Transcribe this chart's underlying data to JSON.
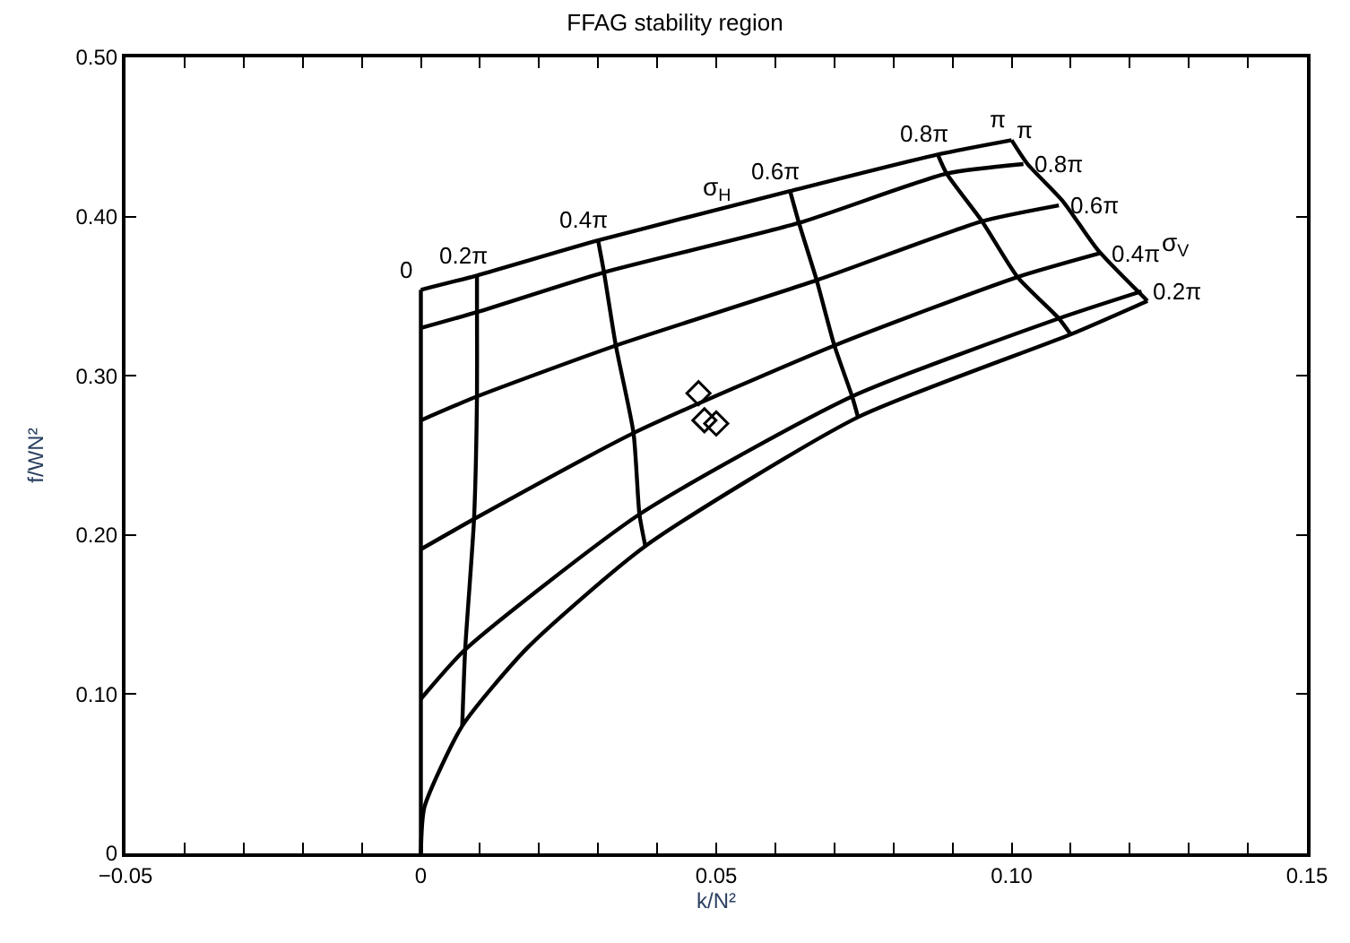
{
  "chart_data": {
    "type": "line",
    "title": "FFAG stability region",
    "xlabel": "k/N²",
    "ylabel": "f/WN²",
    "xlim": [
      -0.05,
      0.15
    ],
    "ylim": [
      0,
      0.5
    ],
    "xticks": [
      {
        "value": -0.05,
        "label": "−0.05"
      },
      {
        "value": -0.04,
        "label": null
      },
      {
        "value": -0.03,
        "label": null
      },
      {
        "value": -0.02,
        "label": null
      },
      {
        "value": -0.01,
        "label": null
      },
      0,
      {
        "value": 0.01,
        "label": null
      },
      {
        "value": 0.02,
        "label": null
      },
      {
        "value": 0.03,
        "label": null
      },
      {
        "value": 0.04,
        "label": null
      },
      0.05,
      {
        "value": 0.06,
        "label": null
      },
      {
        "value": 0.07,
        "label": null
      },
      {
        "value": 0.08,
        "label": null
      },
      {
        "value": 0.09,
        "label": null
      },
      {
        "value": 0.1,
        "label": "0.10"
      },
      {
        "value": 0.11,
        "label": null
      },
      {
        "value": 0.12,
        "label": null
      },
      {
        "value": 0.13,
        "label": null
      },
      {
        "value": 0.14,
        "label": null
      },
      0.15
    ],
    "yticks": [
      0,
      {
        "value": 0.1,
        "label": "0.10"
      },
      {
        "value": 0.2,
        "label": "0.20"
      },
      {
        "value": 0.3,
        "label": "0.30"
      },
      {
        "value": 0.4,
        "label": "0.40"
      },
      {
        "value": 0.5,
        "label": "0.50"
      }
    ],
    "legend": false,
    "marker": "none",
    "line_style": "solid",
    "series": [
      {
        "name": "0",
        "color": "#000000",
        "x": [
          0,
          0,
          0
        ],
        "values": [
          0.354,
          0.2,
          0
        ]
      },
      {
        "name": "π",
        "color": "#000000",
        "x": [
          0,
          0.0095,
          0.03,
          0.0625,
          0.0875,
          0.1
        ],
        "values": [
          0.354,
          0.363,
          0.385,
          0.416,
          0.439,
          0.448
        ]
      },
      {
        "name": "π",
        "color": "#000000",
        "x": [
          0.1,
          0.1027,
          0.1086,
          0.1146,
          0.123
        ],
        "values": [
          0.448,
          0.433,
          0.41,
          0.379,
          0.347
        ]
      },
      {
        "color": "#000000",
        "x": [
          0,
          0.0006,
          0.007,
          0.018,
          0.038,
          0.074,
          0.11,
          0.123
        ],
        "values": [
          0,
          0.029,
          0.08,
          0.129,
          0.193,
          0.274,
          0.326,
          0.347
        ]
      },
      {
        "name": "0.2π",
        "color": "#000000",
        "x": [
          0,
          0.0075,
          0.037,
          0.073,
          0.108,
          0.122
        ],
        "values": [
          0.097,
          0.128,
          0.213,
          0.287,
          0.336,
          0.353
        ]
      },
      {
        "name": "0.4π",
        "color": "#000000",
        "x": [
          0,
          0.009,
          0.036,
          0.07,
          0.101,
          0.115
        ],
        "values": [
          0.191,
          0.21,
          0.264,
          0.319,
          0.362,
          0.377
        ]
      },
      {
        "name": "0.6π",
        "color": "#000000",
        "x": [
          0,
          0.0095,
          0.033,
          0.067,
          0.095,
          0.108
        ],
        "values": [
          0.272,
          0.287,
          0.319,
          0.36,
          0.397,
          0.407
        ]
      },
      {
        "name": "0.8π",
        "color": "#000000",
        "x": [
          0,
          0.0095,
          0.031,
          0.064,
          0.089,
          0.102
        ],
        "values": [
          0.33,
          0.34,
          0.365,
          0.396,
          0.427,
          0.433
        ]
      },
      {
        "name": "0.2π",
        "color": "#000000",
        "x": [
          0.0095,
          0.0095,
          0.0095,
          0.009,
          0.0075,
          0.007
        ],
        "values": [
          0.363,
          0.34,
          0.287,
          0.21,
          0.128,
          0.08
        ]
      },
      {
        "name": "0.4π",
        "color": "#000000",
        "x": [
          0.03,
          0.031,
          0.033,
          0.036,
          0.037,
          0.038
        ],
        "values": [
          0.385,
          0.365,
          0.319,
          0.264,
          0.213,
          0.193
        ]
      },
      {
        "name": "0.6π",
        "color": "#000000",
        "x": [
          0.0625,
          0.064,
          0.067,
          0.07,
          0.073,
          0.074
        ],
        "values": [
          0.416,
          0.396,
          0.36,
          0.319,
          0.287,
          0.274
        ]
      },
      {
        "name": "0.8π",
        "color": "#000000",
        "x": [
          0.0875,
          0.089,
          0.095,
          0.101,
          0.108,
          0.11
        ],
        "values": [
          0.439,
          0.427,
          0.397,
          0.362,
          0.336,
          0.326
        ]
      },
      {
        "type": "scatter",
        "marker": "diamond",
        "color": "#000000",
        "x": [
          0.047,
          0.048,
          0.05
        ],
        "values": [
          0.289,
          0.272,
          0.27
        ]
      }
    ],
    "annotations": [
      "σ$_{H}$",
      "σ$_{V}$"
    ]
  }
}
